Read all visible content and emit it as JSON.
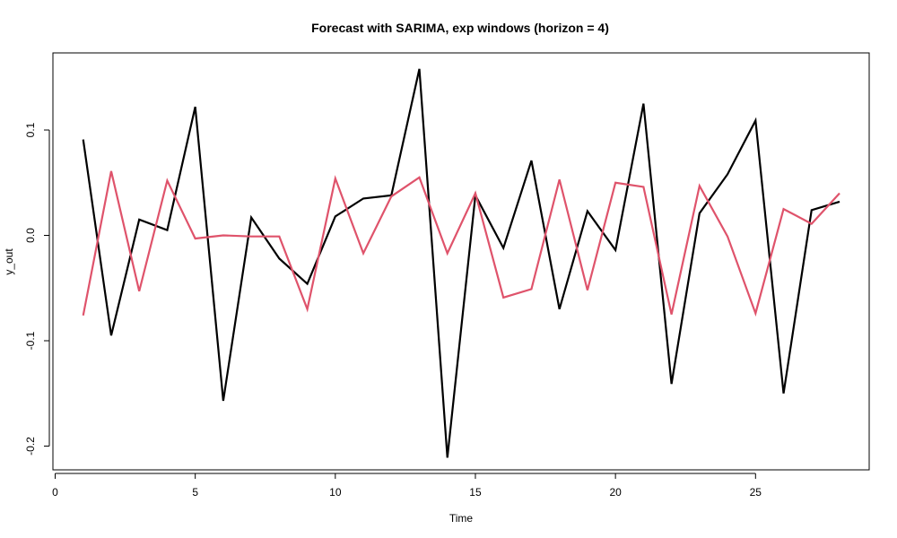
{
  "chart_data": {
    "type": "line",
    "title": "Forecast with SARIMA, exp windows (horizon = 4)",
    "xlabel": "Time",
    "ylabel": "y_out",
    "xlim": [
      0,
      29
    ],
    "ylim": [
      -0.21,
      0.16
    ],
    "x_ticks": [
      0,
      5,
      10,
      15,
      20,
      25
    ],
    "y_ticks": [
      -0.2,
      -0.1,
      0.0,
      0.1
    ],
    "x_tick_labels": [
      "0",
      "5",
      "10",
      "15",
      "20",
      "25"
    ],
    "y_tick_labels": [
      "-0.2",
      "-0.1",
      "0.0",
      "0.1"
    ],
    "grid": false,
    "x": [
      1,
      2,
      3,
      4,
      5,
      6,
      7,
      8,
      9,
      10,
      11,
      12,
      13,
      14,
      15,
      16,
      17,
      18,
      19,
      20,
      21,
      22,
      23,
      24,
      25,
      26,
      27,
      28
    ],
    "series": [
      {
        "color": "#000000",
        "values": [
          0.091,
          -0.095,
          0.015,
          0.005,
          0.122,
          -0.157,
          0.017,
          -0.022,
          -0.046,
          0.018,
          0.035,
          0.038,
          0.158,
          -0.211,
          0.038,
          -0.012,
          0.071,
          -0.07,
          0.023,
          -0.014,
          0.125,
          -0.141,
          0.021,
          0.058,
          0.109,
          -0.15,
          0.024,
          0.032
        ]
      },
      {
        "color": "#DF536B",
        "values": [
          -0.076,
          0.061,
          -0.053,
          0.052,
          -0.003,
          0.0,
          -0.001,
          -0.001,
          -0.07,
          0.054,
          -0.017,
          0.037,
          0.055,
          -0.017,
          0.04,
          -0.059,
          -0.051,
          0.053,
          -0.052,
          0.05,
          0.046,
          -0.075,
          0.047,
          -0.001,
          -0.074,
          0.025,
          0.011,
          0.04
        ]
      }
    ]
  }
}
